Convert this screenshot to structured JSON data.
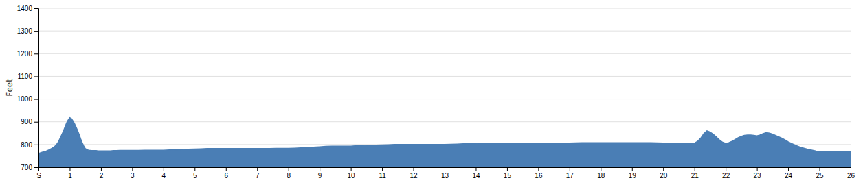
{
  "chart_data": {
    "type": "area",
    "ylabel": "Feet",
    "color": "#4a7eb5",
    "grid": true,
    "xlim": [
      0,
      26
    ],
    "ylim": [
      700,
      1400
    ],
    "yticks": [
      700,
      800,
      900,
      1000,
      1100,
      1200,
      1300,
      1400
    ],
    "xticks": [
      {
        "value": 0,
        "label": "S"
      },
      1,
      2,
      3,
      4,
      5,
      6,
      7,
      8,
      9,
      10,
      11,
      12,
      13,
      14,
      15,
      16,
      17,
      18,
      19,
      20,
      21,
      22,
      23,
      24,
      25,
      26
    ],
    "x": [
      0.0,
      0.05,
      0.1,
      0.15,
      0.2,
      0.25,
      0.3,
      0.35,
      0.4,
      0.45,
      0.5,
      0.55,
      0.6,
      0.65,
      0.7,
      0.75,
      0.8,
      0.85,
      0.9,
      0.95,
      1.0,
      1.05,
      1.1,
      1.15,
      1.2,
      1.25,
      1.3,
      1.35,
      1.4,
      1.45,
      1.5,
      1.55,
      1.6,
      1.65,
      1.7,
      1.75,
      1.8,
      1.85,
      1.9,
      1.95,
      2.0,
      2.1,
      2.2,
      2.3,
      2.4,
      2.5,
      2.6,
      2.7,
      2.8,
      2.9,
      3.0,
      3.2,
      3.4,
      3.6,
      3.8,
      4.0,
      4.2,
      4.4,
      4.6,
      4.8,
      5.0,
      5.2,
      5.4,
      5.6,
      5.8,
      6.0,
      6.2,
      6.4,
      6.6,
      6.8,
      7.0,
      7.2,
      7.4,
      7.6,
      7.8,
      8.0,
      8.2,
      8.4,
      8.6,
      8.8,
      9.0,
      9.2,
      9.4,
      9.6,
      9.8,
      10.0,
      10.2,
      10.4,
      10.6,
      10.8,
      11.0,
      11.2,
      11.4,
      11.6,
      11.8,
      12.0,
      12.2,
      12.4,
      12.6,
      12.8,
      13.0,
      13.2,
      13.4,
      13.6,
      13.8,
      14.0,
      14.2,
      14.4,
      14.6,
      14.8,
      15.0,
      15.2,
      15.4,
      15.6,
      15.8,
      16.0,
      16.2,
      16.4,
      16.6,
      16.8,
      17.0,
      17.2,
      17.4,
      17.6,
      17.8,
      18.0,
      18.2,
      18.4,
      18.6,
      18.8,
      19.0,
      19.2,
      19.4,
      19.6,
      19.8,
      20.0,
      20.2,
      20.4,
      20.6,
      20.8,
      21.0,
      21.1,
      21.2,
      21.3,
      21.4,
      21.5,
      21.6,
      21.7,
      21.8,
      21.9,
      22.0,
      22.1,
      22.2,
      22.3,
      22.4,
      22.5,
      22.6,
      22.7,
      22.8,
      22.9,
      23.0,
      23.1,
      23.2,
      23.3,
      23.4,
      23.5,
      23.6,
      23.7,
      23.8,
      23.9,
      24.0,
      24.1,
      24.2,
      24.3,
      24.4,
      24.5,
      24.6,
      24.7,
      24.8,
      24.9,
      25.0,
      25.2,
      25.4,
      25.6,
      25.8,
      26.0
    ],
    "values": [
      762,
      763,
      765,
      767,
      769,
      771,
      774,
      777,
      781,
      785,
      789,
      796,
      804,
      815,
      830,
      845,
      860,
      878,
      895,
      908,
      918,
      915,
      905,
      893,
      878,
      862,
      845,
      825,
      808,
      793,
      782,
      778,
      775,
      774,
      773,
      773,
      773,
      773,
      772,
      772,
      772,
      772,
      772,
      772,
      773,
      773,
      774,
      774,
      774,
      774,
      774,
      774,
      775,
      775,
      775,
      775,
      776,
      777,
      778,
      779,
      780,
      781,
      782,
      782,
      782,
      782,
      782,
      782,
      782,
      782,
      782,
      782,
      782,
      783,
      783,
      783,
      784,
      785,
      786,
      788,
      790,
      792,
      793,
      793,
      793,
      793,
      795,
      796,
      797,
      797,
      798,
      799,
      800,
      800,
      800,
      800,
      800,
      800,
      800,
      800,
      800,
      801,
      802,
      803,
      804,
      805,
      806,
      806,
      806,
      806,
      806,
      806,
      806,
      806,
      806,
      806,
      806,
      806,
      806,
      806,
      806,
      807,
      808,
      808,
      808,
      808,
      808,
      808,
      808,
      808,
      808,
      808,
      808,
      808,
      807,
      806,
      806,
      806,
      806,
      806,
      806,
      814,
      828,
      848,
      860,
      855,
      845,
      833,
      820,
      810,
      805,
      808,
      814,
      822,
      830,
      836,
      840,
      842,
      842,
      840,
      838,
      842,
      848,
      852,
      850,
      846,
      840,
      834,
      828,
      820,
      812,
      805,
      799,
      793,
      788,
      784,
      780,
      777,
      774,
      771,
      769,
      769,
      769,
      769,
      769,
      769
    ]
  }
}
